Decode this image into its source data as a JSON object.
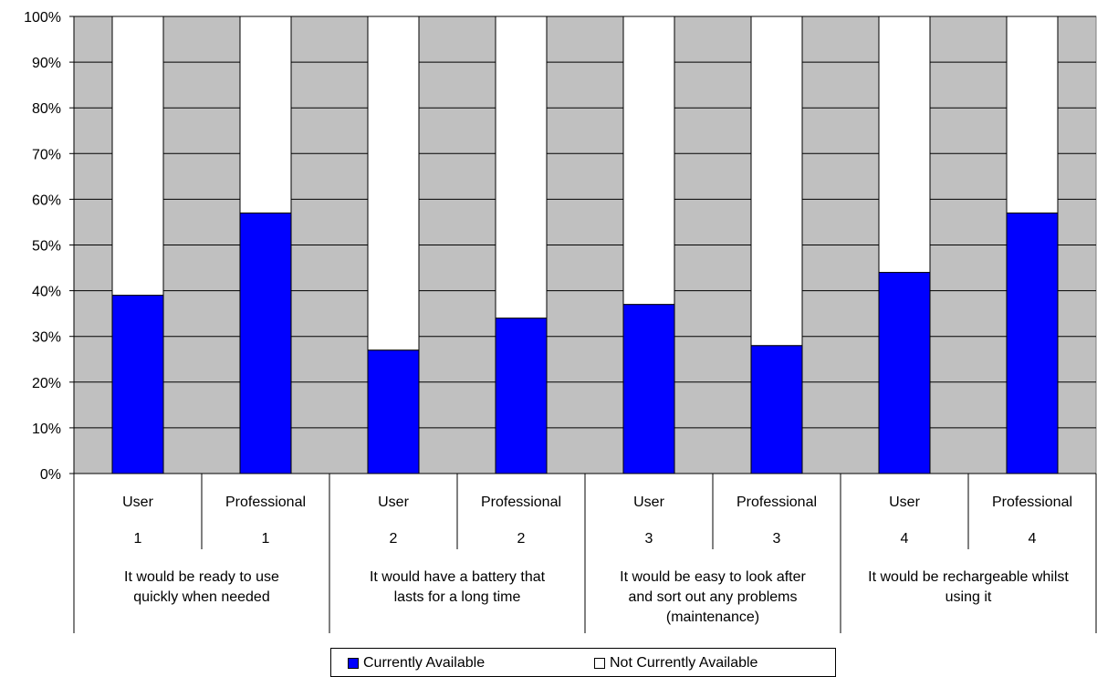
{
  "chart_data": {
    "type": "bar",
    "stacked": true,
    "ylim": [
      0,
      100
    ],
    "y_ticks": [
      "0%",
      "10%",
      "20%",
      "30%",
      "40%",
      "50%",
      "60%",
      "70%",
      "80%",
      "90%",
      "100%"
    ],
    "grid": true,
    "legend_placement": "bottom",
    "categories": [
      {
        "level1": "User",
        "level2": "1"
      },
      {
        "level1": "Professional",
        "level2": "1"
      },
      {
        "level1": "User",
        "level2": "2"
      },
      {
        "level1": "Professional",
        "level2": "2"
      },
      {
        "level1": "User",
        "level2": "3"
      },
      {
        "level1": "Professional",
        "level2": "3"
      },
      {
        "level1": "User",
        "level2": "4"
      },
      {
        "level1": "Professional",
        "level2": "4"
      }
    ],
    "groups": [
      {
        "lines": [
          "It would be ready to use",
          "quickly when needed"
        ]
      },
      {
        "lines": [
          "It would have a battery that",
          "lasts for a long time"
        ]
      },
      {
        "lines": [
          "It would be easy to look after",
          "and sort out any problems",
          "(maintenance)"
        ]
      },
      {
        "lines": [
          "It would be rechargeable whilst",
          "using it"
        ]
      }
    ],
    "series": [
      {
        "name": "Currently Available",
        "color": "#0000ff",
        "values": [
          39,
          57,
          27,
          34,
          37,
          28,
          44,
          57
        ]
      },
      {
        "name": "Not Currently Available",
        "color": "#ffffff",
        "values": [
          61,
          43,
          73,
          66,
          63,
          72,
          56,
          43
        ]
      }
    ],
    "plot_background": "#c0c0c0"
  },
  "legend": {
    "items": [
      {
        "label": "Currently Available",
        "color": "#0000ff"
      },
      {
        "label": "Not Currently Available",
        "color": "#ffffff"
      }
    ]
  }
}
